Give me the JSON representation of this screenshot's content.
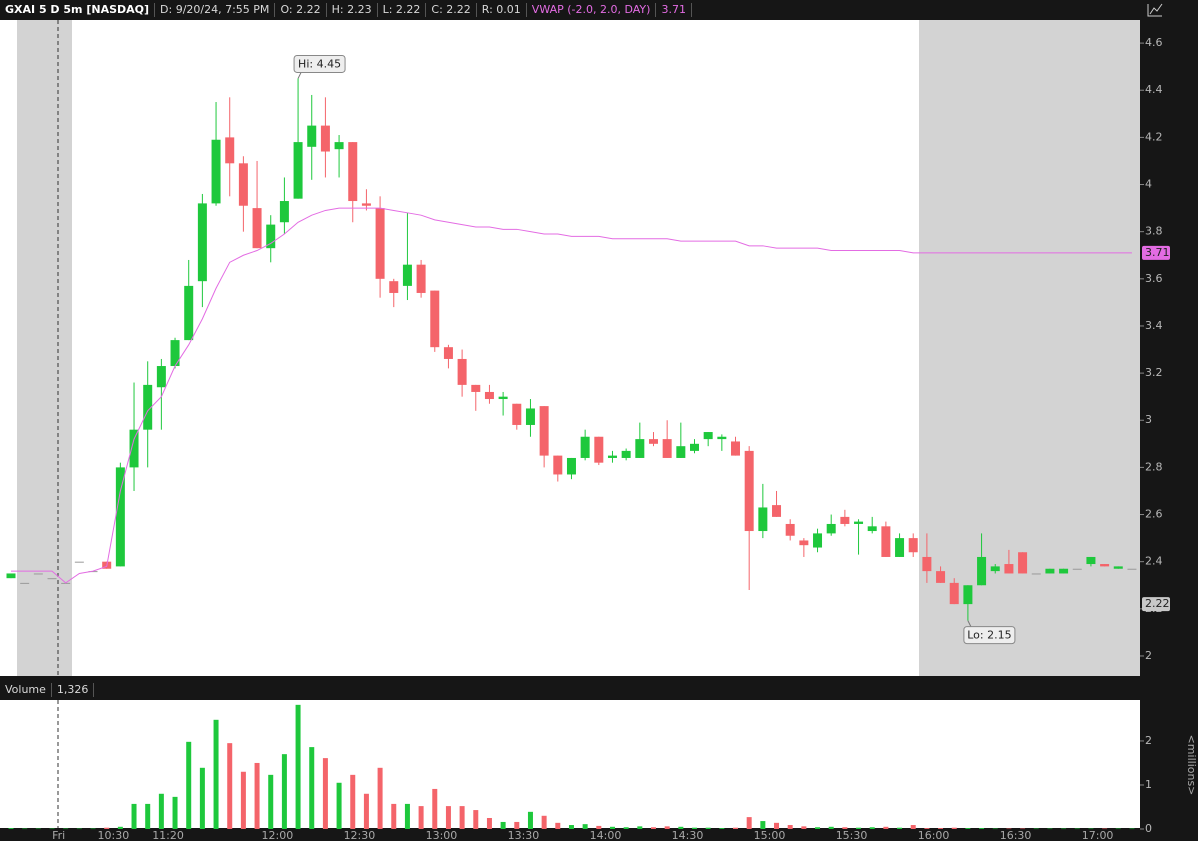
{
  "header": {
    "symbol": "GXAI 5 D 5m [NASDAQ]",
    "fields": [
      "D: 9/20/24, 7:55 PM",
      "O: 2.22",
      "H: 2.23",
      "L: 2.22",
      "C: 2.22",
      "R: 0.01"
    ],
    "study": "VWAP (-2.0, 2.0, DAY)",
    "study_value": "3.71"
  },
  "chart_data": [
    {
      "type": "candlestick",
      "categories": [
        null,
        null,
        null,
        null,
        "Fri",
        null,
        null,
        null,
        "10:30",
        null,
        null,
        null,
        "11:20",
        null,
        null,
        null,
        null,
        null,
        null,
        null,
        "12:00",
        null,
        null,
        null,
        null,
        null,
        "12:30",
        null,
        null,
        null,
        null,
        null,
        "13:00",
        null,
        null,
        null,
        null,
        null,
        "13:30",
        null,
        null,
        null,
        null,
        null,
        "14:00",
        null,
        null,
        null,
        null,
        null,
        "14:30",
        null,
        null,
        null,
        null,
        null,
        "15:00",
        null,
        null,
        null,
        null,
        null,
        "15:30",
        null,
        null,
        null,
        null,
        null,
        "16:00",
        null,
        null,
        null,
        null,
        null,
        "16:30",
        null,
        null,
        null,
        null,
        null,
        "17:00",
        null,
        null
      ],
      "open": [
        2.33,
        2.31,
        2.35,
        2.33,
        2.31,
        2.4,
        2.36,
        2.4,
        2.38,
        2.8,
        2.96,
        3.14,
        3.23,
        3.34,
        3.59,
        3.92,
        4.2,
        4.09,
        3.9,
        3.73,
        3.84,
        3.94,
        4.16,
        4.25,
        4.15,
        4.18,
        3.92,
        3.9,
        3.59,
        3.57,
        3.66,
        3.55,
        3.31,
        3.26,
        3.15,
        3.12,
        3.09,
        3.07,
        2.98,
        3.06,
        2.85,
        2.77,
        2.84,
        2.93,
        2.84,
        2.84,
        2.84,
        2.92,
        2.92,
        2.84,
        2.87,
        2.92,
        2.92,
        2.91,
        2.87,
        2.53,
        2.64,
        2.56,
        2.49,
        2.46,
        2.52,
        2.59,
        2.56,
        2.53,
        2.55,
        2.42,
        2.5,
        2.42,
        2.36,
        2.31,
        2.22,
        2.3,
        2.36,
        2.39,
        2.44,
        2.35,
        2.35,
        2.35,
        2.37,
        2.39,
        2.39,
        2.37,
        2.37
      ],
      "high": [
        2.35,
        2.31,
        2.35,
        2.33,
        2.31,
        2.4,
        2.36,
        2.4,
        2.82,
        3.16,
        3.25,
        3.26,
        3.35,
        3.68,
        3.96,
        4.35,
        4.37,
        4.12,
        4.1,
        3.87,
        4.03,
        4.45,
        4.38,
        4.37,
        4.21,
        4.18,
        3.98,
        3.95,
        3.6,
        3.88,
        3.68,
        3.55,
        3.32,
        3.3,
        3.15,
        3.15,
        3.12,
        3.07,
        3.09,
        3.06,
        2.85,
        2.84,
        2.96,
        2.93,
        2.87,
        2.88,
        2.99,
        2.95,
        3.0,
        2.99,
        2.92,
        2.95,
        2.94,
        2.93,
        2.89,
        2.73,
        2.7,
        2.58,
        2.5,
        2.54,
        2.6,
        2.62,
        2.58,
        2.59,
        2.57,
        2.52,
        2.52,
        2.52,
        2.38,
        2.33,
        2.3,
        2.52,
        2.39,
        2.45,
        2.44,
        2.35,
        2.37,
        2.37,
        2.37,
        2.42,
        2.39,
        2.38,
        2.37
      ],
      "low": [
        2.33,
        2.31,
        2.35,
        2.33,
        2.31,
        2.4,
        2.36,
        2.37,
        2.38,
        2.7,
        2.8,
        2.96,
        3.22,
        3.34,
        3.48,
        3.91,
        3.95,
        3.8,
        3.73,
        3.67,
        3.79,
        3.94,
        4.02,
        4.03,
        4.03,
        3.84,
        3.89,
        3.52,
        3.48,
        3.51,
        3.52,
        3.29,
        3.22,
        3.1,
        3.04,
        3.07,
        3.02,
        2.96,
        2.93,
        2.8,
        2.74,
        2.75,
        2.83,
        2.81,
        2.82,
        2.83,
        2.84,
        2.89,
        2.84,
        2.84,
        2.86,
        2.89,
        2.87,
        2.85,
        2.28,
        2.5,
        2.59,
        2.49,
        2.42,
        2.44,
        2.51,
        2.55,
        2.43,
        2.52,
        2.42,
        2.42,
        2.42,
        2.31,
        2.31,
        2.22,
        2.15,
        2.3,
        2.35,
        2.35,
        2.35,
        2.35,
        2.35,
        2.35,
        2.37,
        2.38,
        2.38,
        2.37,
        2.37
      ],
      "close": [
        2.35,
        2.31,
        2.35,
        2.33,
        2.31,
        2.4,
        2.36,
        2.37,
        2.8,
        2.96,
        3.15,
        3.23,
        3.34,
        3.57,
        3.92,
        4.19,
        4.09,
        3.91,
        3.73,
        3.83,
        3.93,
        4.18,
        4.25,
        4.14,
        4.18,
        3.93,
        3.91,
        3.6,
        3.54,
        3.66,
        3.54,
        3.31,
        3.26,
        3.15,
        3.12,
        3.09,
        3.1,
        2.98,
        3.05,
        2.85,
        2.77,
        2.84,
        2.93,
        2.82,
        2.85,
        2.87,
        2.92,
        2.9,
        2.84,
        2.89,
        2.9,
        2.95,
        2.93,
        2.85,
        2.53,
        2.63,
        2.59,
        2.51,
        2.47,
        2.52,
        2.56,
        2.56,
        2.57,
        2.55,
        2.42,
        2.5,
        2.44,
        2.36,
        2.31,
        2.22,
        2.3,
        2.42,
        2.38,
        2.35,
        2.35,
        2.35,
        2.37,
        2.37,
        2.37,
        2.42,
        2.38,
        2.38,
        2.37
      ],
      "up_color": "#1ec83c",
      "down_color": "#f4646a",
      "flat_color": "#9a9a9a",
      "vwap": {
        "color": "#e36ce3",
        "values": [
          2.36,
          2.36,
          2.36,
          2.36,
          2.31,
          2.35,
          2.36,
          2.38,
          2.7,
          2.92,
          3.04,
          3.1,
          3.23,
          3.32,
          3.43,
          3.56,
          3.67,
          3.7,
          3.72,
          3.75,
          3.79,
          3.84,
          3.87,
          3.89,
          3.9,
          3.9,
          3.9,
          3.9,
          3.89,
          3.88,
          3.87,
          3.85,
          3.84,
          3.83,
          3.82,
          3.82,
          3.81,
          3.81,
          3.8,
          3.79,
          3.79,
          3.78,
          3.78,
          3.78,
          3.77,
          3.77,
          3.77,
          3.77,
          3.77,
          3.76,
          3.76,
          3.76,
          3.76,
          3.76,
          3.74,
          3.74,
          3.73,
          3.73,
          3.73,
          3.73,
          3.72,
          3.72,
          3.72,
          3.72,
          3.72,
          3.72,
          3.71,
          3.71,
          3.71,
          3.71,
          3.71,
          3.71,
          3.71,
          3.71,
          3.71,
          3.71,
          3.71,
          3.71,
          3.71,
          3.71,
          3.71,
          3.71,
          3.71
        ]
      },
      "annotations": [
        {
          "text": "Hi: 4.45",
          "value": 4.45
        },
        {
          "text": "Lo: 2.15",
          "value": 2.15
        }
      ],
      "markers": [
        {
          "value": 3.71,
          "color": "#e36ce3"
        },
        {
          "value": 2.22,
          "color": "#c8c8c8"
        }
      ],
      "ylim": [
        1.915,
        4.698
      ],
      "yticks": [
        2,
        2.2,
        2.4,
        2.6,
        2.8,
        3,
        3.2,
        3.4,
        3.6,
        3.8,
        4,
        4.2,
        4.4,
        4.6
      ]
    },
    {
      "type": "bar",
      "title": "Volume",
      "subtitle": "1,326",
      "y_label": "<millions>",
      "values": [
        0.02,
        0.01,
        0.01,
        0.01,
        0.01,
        0.01,
        0.01,
        0.03,
        0.05,
        0.57,
        0.57,
        0.8,
        0.73,
        1.98,
        1.39,
        2.48,
        1.95,
        1.3,
        1.5,
        1.23,
        1.7,
        2.82,
        1.86,
        1.61,
        1.05,
        1.23,
        0.8,
        1.39,
        0.57,
        0.57,
        0.52,
        0.91,
        0.52,
        0.52,
        0.43,
        0.25,
        0.16,
        0.16,
        0.39,
        0.3,
        0.14,
        0.09,
        0.11,
        0.07,
        0.05,
        0.04,
        0.06,
        0.04,
        0.06,
        0.05,
        0.03,
        0.03,
        0.02,
        0.03,
        0.27,
        0.18,
        0.14,
        0.09,
        0.06,
        0.04,
        0.05,
        0.04,
        0.03,
        0.04,
        0.05,
        0.03,
        0.09,
        0.02,
        0.02,
        0.03,
        0.02,
        0.02,
        0.01,
        0.01,
        0.01,
        0.01,
        0.01,
        0.01,
        0.01,
        0.01,
        0.01,
        0.01,
        0.01
      ],
      "ylim": [
        0,
        2.93
      ],
      "yticks": [
        0,
        1,
        2
      ]
    }
  ]
}
